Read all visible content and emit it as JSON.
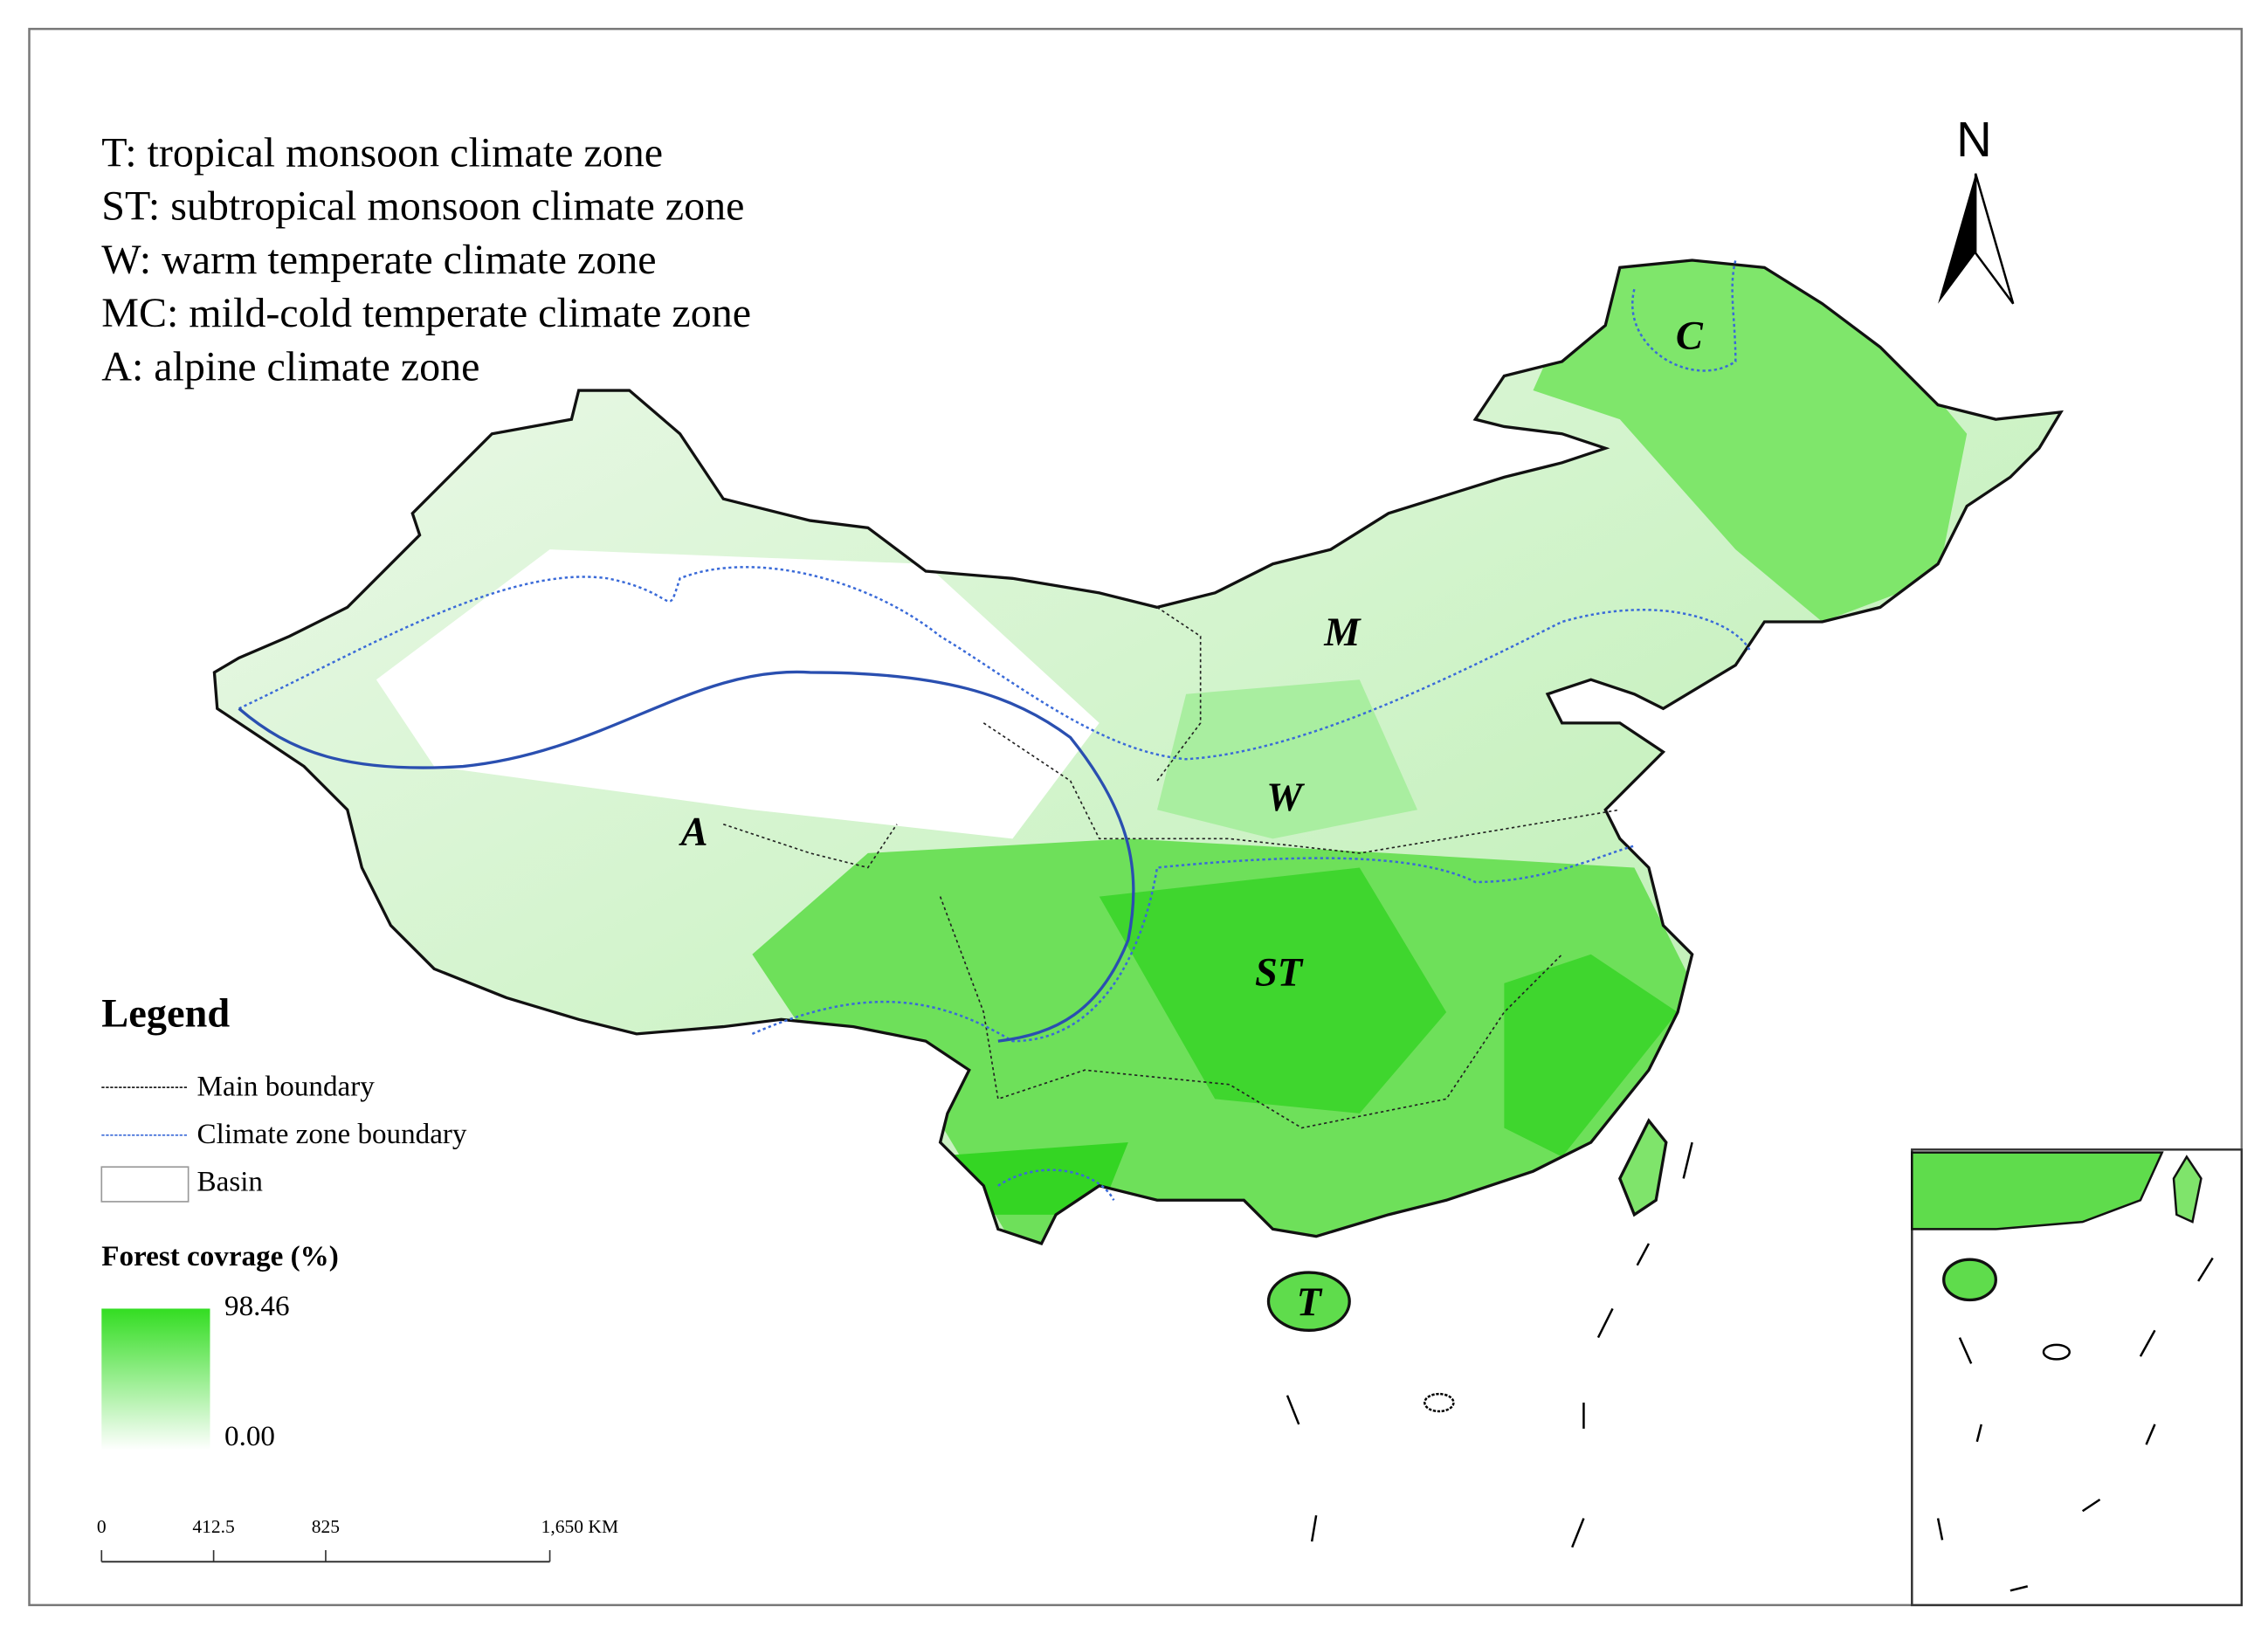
{
  "zone_key": [
    "T: tropical monsoon climate zone",
    "ST: subtropical monsoon climate zone",
    "W: warm temperate climate zone",
    "MC: mild-cold temperate climate zone",
    "A: alpine climate zone"
  ],
  "zone_labels": [
    "C",
    "M",
    "W",
    "A",
    "ST",
    "T"
  ],
  "north": "N",
  "legend": {
    "title": "Legend",
    "items": [
      "Main boundary",
      "Climate zone boundary",
      "Basin"
    ]
  },
  "colorbar": {
    "title": "Forest covrage (%)",
    "max": 98.46,
    "min": {
      "value": 0,
      "label": "0.00"
    }
  },
  "scale_bar": {
    "ticks": [
      0,
      412.5,
      825,
      {
        "value": 1650,
        "label": "1,650 KM"
      }
    ]
  }
}
